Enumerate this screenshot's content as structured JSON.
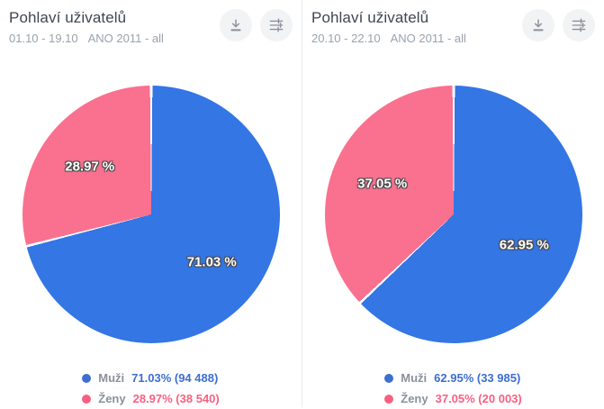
{
  "colors": {
    "pie_blue": "#3376e4",
    "pie_pink": "#f9718f",
    "title_text": "#3e4653",
    "subtitle_text": "#9aa2ad",
    "divider": "#e9ebed",
    "icon": "#8a9098",
    "icon_bg": "#f1f3f5"
  },
  "icons": {
    "download": "download-icon",
    "filter": "sliders-icon"
  },
  "panels": [
    {
      "title": "Pohlaví uživatelů",
      "date_range": "01.10 - 19.10",
      "dataset": "ANO 2011 - all",
      "legend": [
        {
          "label": "Muži",
          "value_text": "71.03% (94 488)",
          "color": "#3d6ed0"
        },
        {
          "label": "Ženy",
          "value_text": "28.97% (38 540)",
          "color": "#f95f81"
        }
      ]
    },
    {
      "title": "Pohlaví uživatelů",
      "date_range": "20.10 - 22.10",
      "dataset": "ANO 2011 - all",
      "legend": [
        {
          "label": "Muži",
          "value_text": "62.95% (33 985)",
          "color": "#3d6ed0"
        },
        {
          "label": "Ženy",
          "value_text": "37.05% (20 003)",
          "color": "#f95f81"
        }
      ]
    }
  ],
  "chart_data": [
    {
      "type": "pie",
      "title": "Pohlaví uživatelů",
      "subtitle": "01.10 - 19.10 ANO 2011 - all",
      "labels": [
        "Muži",
        "Ženy"
      ],
      "values": [
        71.03,
        28.97
      ],
      "counts": [
        94488,
        38540
      ],
      "slice_labels": [
        "71.03 %",
        "28.97 %"
      ],
      "colors": [
        "#3376e4",
        "#f9718f"
      ],
      "start_angle_deg": 0,
      "direction": "clockwise",
      "legend_position": "bottom"
    },
    {
      "type": "pie",
      "title": "Pohlaví uživatelů",
      "subtitle": "20.10 - 22.10 ANO 2011 - all",
      "labels": [
        "Muži",
        "Ženy"
      ],
      "values": [
        62.95,
        37.05
      ],
      "counts": [
        33985,
        20003
      ],
      "slice_labels": [
        "62.95 %",
        "37.05 %"
      ],
      "colors": [
        "#3376e4",
        "#f9718f"
      ],
      "start_angle_deg": 0,
      "direction": "clockwise",
      "legend_position": "bottom"
    }
  ]
}
